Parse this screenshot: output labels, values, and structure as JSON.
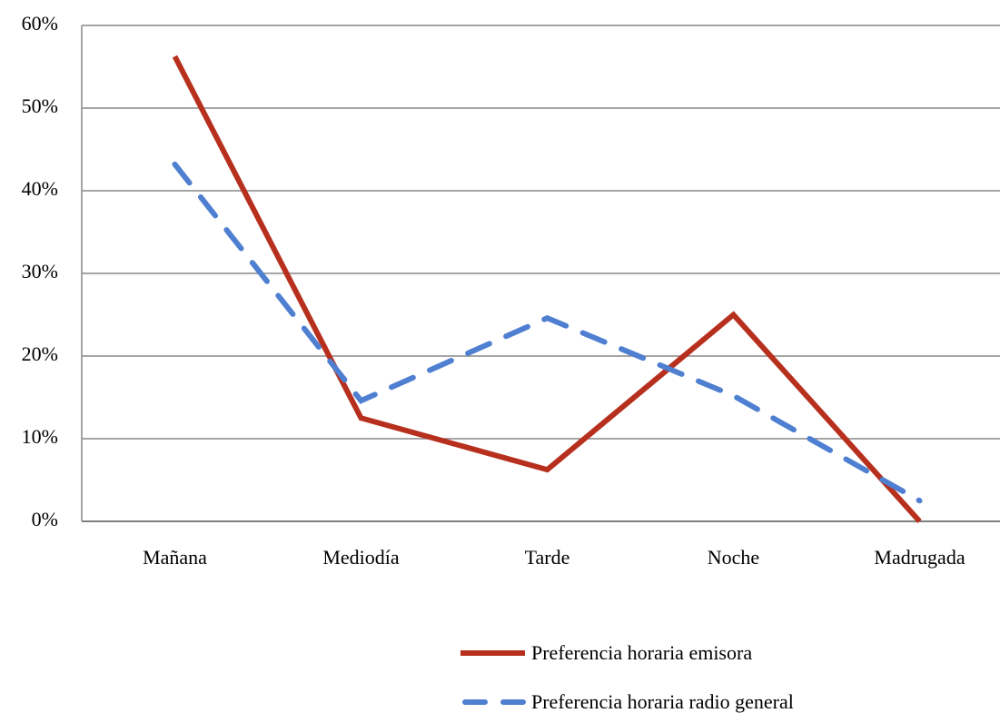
{
  "chart_data": {
    "type": "line",
    "categories": [
      "Mañana",
      "Mediodía",
      "Tarde",
      "Noche",
      "Madrugada"
    ],
    "series": [
      {
        "name": "Preferencia horaria emisora",
        "color": "#b7301e",
        "dash": false,
        "values": [
          56.25,
          12.5,
          6.25,
          25,
          0
        ]
      },
      {
        "name": "Preferencia horaria radio general",
        "color": "#4f7fd0",
        "dash": true,
        "values": [
          43.2,
          14.6,
          24.6,
          15.2,
          2.5
        ]
      }
    ],
    "ylim": [
      0,
      60
    ],
    "yticks": [
      {
        "value": 0,
        "label": "0%"
      },
      {
        "value": 10,
        "label": "10%"
      },
      {
        "value": 20,
        "label": "20%"
      },
      {
        "value": 30,
        "label": "30%"
      },
      {
        "value": 40,
        "label": "40%"
      },
      {
        "value": 50,
        "label": "50%"
      },
      {
        "value": 60,
        "label": "60%"
      }
    ],
    "grid": true,
    "legend": "bottom"
  }
}
